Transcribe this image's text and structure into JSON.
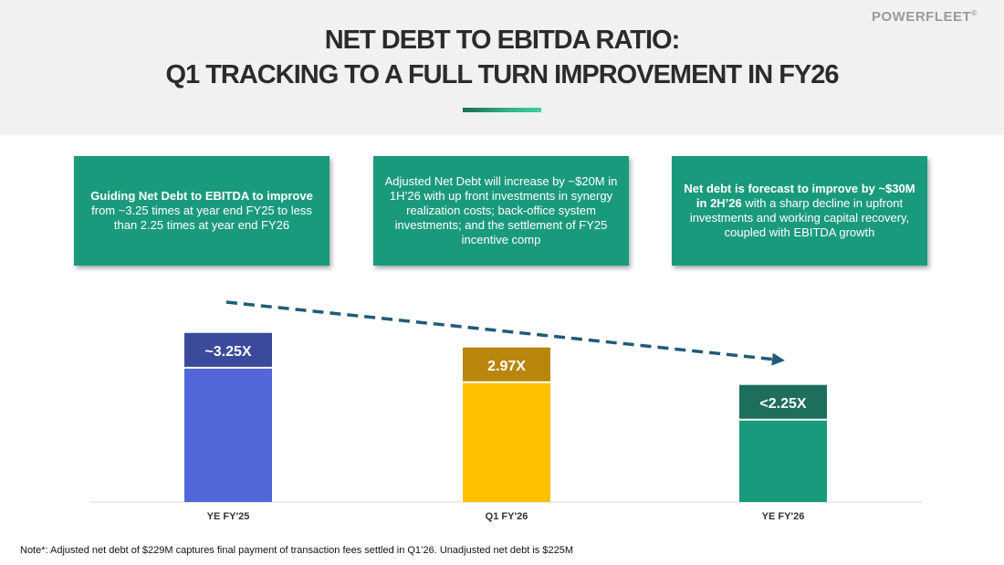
{
  "header": {
    "title_line1": "NET DEBT TO EBITDA RATIO:",
    "title_line2": "Q1 TRACKING TO A FULL TURN IMPROVEMENT IN FY26",
    "logo": "POWERFLEET",
    "logo_mark": "®"
  },
  "cards": [
    {
      "bold": "Guiding Net Debt to EBITDA to improve",
      "text": " from ~3.25 times at year end FY25 to less than 2.25 times at year end FY26"
    },
    {
      "bold": "",
      "text": "Adjusted Net Debt will increase by ~$20M in 1H’26 with up front investments in synergy realization costs; back-office system investments; and the settlement of FY25 incentive comp"
    },
    {
      "bold": "Net debt is forecast to improve by ~$30M in 2H’26",
      "text": " with a sharp decline in upfront investments and working capital recovery, coupled with EBITDA growth"
    }
  ],
  "chart_data": {
    "type": "bar",
    "categories": [
      "YE FY'25",
      "Q1 FY'26",
      "YE FY'26"
    ],
    "values": [
      3.25,
      2.97,
      2.25
    ],
    "data_labels": [
      "~3.25X",
      "2.97X",
      "<2.25X"
    ],
    "colors": [
      "#5367d8",
      "#ffc000",
      "#1a9a7c"
    ],
    "label_colors": [
      "#3b4a9a",
      "#b8860b",
      "#1d6e5a"
    ],
    "trend_color": "#1f5c78",
    "ylim": [
      0,
      4.3
    ],
    "trend": "dashed-arrow-decreasing",
    "grid": false,
    "legend": "none"
  },
  "note": "Note*:  Adjusted net debt of $229M captures final payment of transaction fees settled in Q1’26.  Unadjusted net debt is $225M"
}
